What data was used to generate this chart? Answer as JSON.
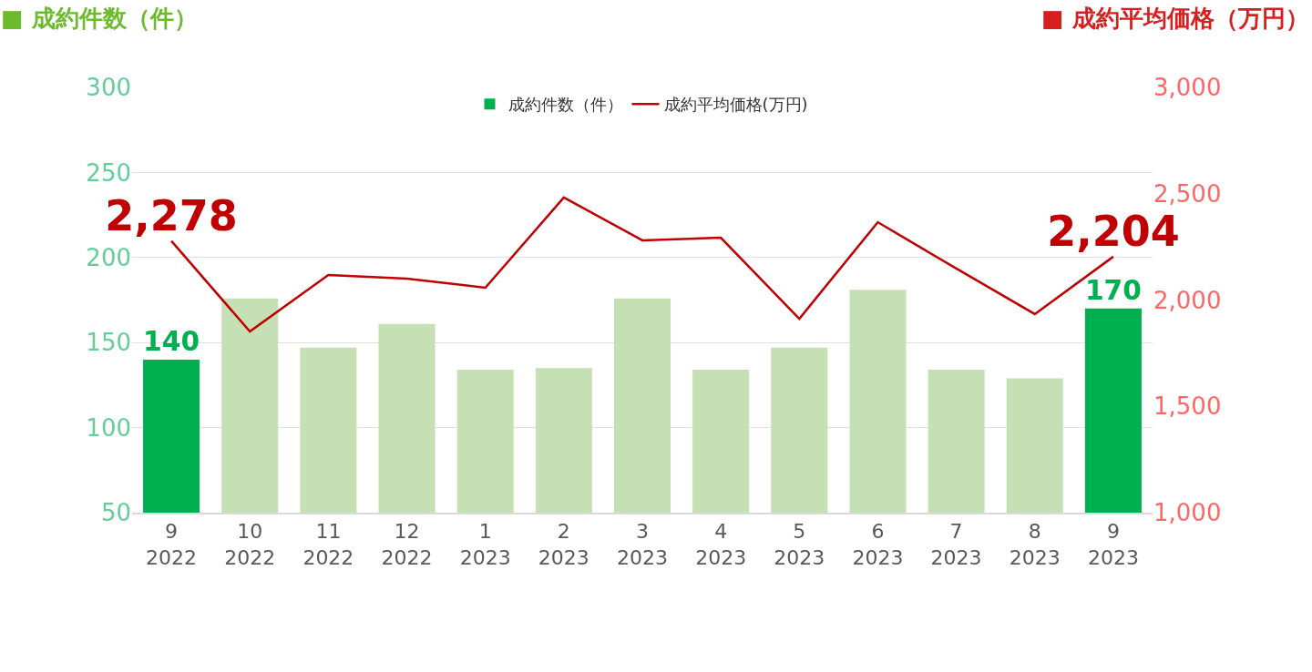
{
  "chart_data": {
    "type": "bar",
    "ylabel": "■ 成約件数（件）",
    "y2label": "■ 成約平均価格（万円）",
    "categories": [
      "9\n2022",
      "10\n2022",
      "11\n2022",
      "12\n2022",
      "1\n2023",
      "2\n2023",
      "3\n2023",
      "4\n2023",
      "5\n2023",
      "6\n2023",
      "7\n2023",
      "8\n2023",
      "9\n2023"
    ],
    "series": [
      {
        "name": "成約件数（件）",
        "color": "#c5e0b4",
        "colors": [
          "#00b050",
          "#c5e0b4",
          "#c5e0b4",
          "#c5e0b4",
          "#c5e0b4",
          "#c5e0b4",
          "#c5e0b4",
          "#c5e0b4",
          "#c5e0b4",
          "#c5e0b4",
          "#c5e0b4",
          "#c5e0b4",
          "#00b050"
        ],
        "values": [
          140,
          176,
          147,
          161,
          134,
          135,
          176,
          134,
          147,
          181,
          134,
          129,
          170
        ],
        "value_labels": [
          "140",
          null,
          null,
          null,
          null,
          null,
          null,
          null,
          null,
          null,
          null,
          null,
          "170"
        ]
      },
      {
        "name": "成約平均価格(万円)",
        "type": "line",
        "axis": "y2",
        "color": "#c00000",
        "values": [
          2278,
          1852,
          2118,
          2101,
          2058,
          2482,
          2281,
          2293,
          1912,
          2366,
          2148,
          1934,
          2204
        ],
        "value_labels": [
          "2,278",
          null,
          null,
          null,
          null,
          null,
          null,
          null,
          null,
          null,
          null,
          null,
          "2,204"
        ]
      }
    ],
    "ylim": [
      50,
      300
    ],
    "yticks": [
      50,
      100,
      150,
      200,
      250,
      300
    ],
    "y2lim": [
      1000,
      3000
    ],
    "y2ticks": [
      {
        "value": 1000,
        "label": "1,000"
      },
      {
        "value": 1500,
        "label": "1,500"
      },
      {
        "value": 2000,
        "label": "2,000"
      },
      {
        "value": 2500,
        "label": "2,500"
      },
      {
        "value": 3000,
        "label": "3,000"
      }
    ],
    "grid": "y",
    "legend": "top"
  }
}
